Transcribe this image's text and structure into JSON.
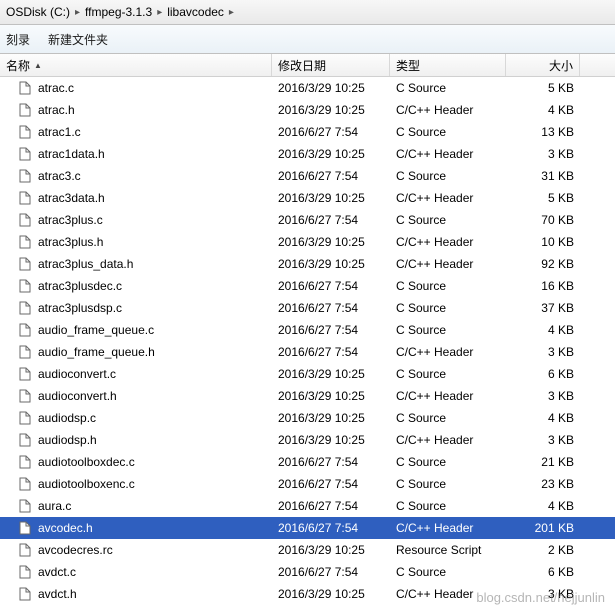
{
  "breadcrumb": {
    "root": "OSDisk (C:)",
    "parts": [
      "ffmpeg-3.1.3",
      "libavcodec"
    ]
  },
  "toolbar": {
    "burn": "刻录",
    "newfolder": "新建文件夹"
  },
  "columns": {
    "name": "名称",
    "date": "修改日期",
    "type": "类型",
    "size": "大小"
  },
  "types": {
    "csrc": "C Source",
    "hdr": "C/C++ Header",
    "rc": "Resource Script"
  },
  "watermark": "blog.csdn.net/hejjunlin",
  "files": [
    {
      "name": "atrac.c",
      "date": "2016/3/29 10:25",
      "type": "csrc",
      "size": "5 KB"
    },
    {
      "name": "atrac.h",
      "date": "2016/3/29 10:25",
      "type": "hdr",
      "size": "4 KB"
    },
    {
      "name": "atrac1.c",
      "date": "2016/6/27 7:54",
      "type": "csrc",
      "size": "13 KB"
    },
    {
      "name": "atrac1data.h",
      "date": "2016/3/29 10:25",
      "type": "hdr",
      "size": "3 KB"
    },
    {
      "name": "atrac3.c",
      "date": "2016/6/27 7:54",
      "type": "csrc",
      "size": "31 KB"
    },
    {
      "name": "atrac3data.h",
      "date": "2016/3/29 10:25",
      "type": "hdr",
      "size": "5 KB"
    },
    {
      "name": "atrac3plus.c",
      "date": "2016/6/27 7:54",
      "type": "csrc",
      "size": "70 KB"
    },
    {
      "name": "atrac3plus.h",
      "date": "2016/3/29 10:25",
      "type": "hdr",
      "size": "10 KB"
    },
    {
      "name": "atrac3plus_data.h",
      "date": "2016/3/29 10:25",
      "type": "hdr",
      "size": "92 KB"
    },
    {
      "name": "atrac3plusdec.c",
      "date": "2016/6/27 7:54",
      "type": "csrc",
      "size": "16 KB"
    },
    {
      "name": "atrac3plusdsp.c",
      "date": "2016/6/27 7:54",
      "type": "csrc",
      "size": "37 KB"
    },
    {
      "name": "audio_frame_queue.c",
      "date": "2016/6/27 7:54",
      "type": "csrc",
      "size": "4 KB"
    },
    {
      "name": "audio_frame_queue.h",
      "date": "2016/6/27 7:54",
      "type": "hdr",
      "size": "3 KB"
    },
    {
      "name": "audioconvert.c",
      "date": "2016/3/29 10:25",
      "type": "csrc",
      "size": "6 KB"
    },
    {
      "name": "audioconvert.h",
      "date": "2016/3/29 10:25",
      "type": "hdr",
      "size": "3 KB"
    },
    {
      "name": "audiodsp.c",
      "date": "2016/3/29 10:25",
      "type": "csrc",
      "size": "4 KB"
    },
    {
      "name": "audiodsp.h",
      "date": "2016/3/29 10:25",
      "type": "hdr",
      "size": "3 KB"
    },
    {
      "name": "audiotoolboxdec.c",
      "date": "2016/6/27 7:54",
      "type": "csrc",
      "size": "21 KB"
    },
    {
      "name": "audiotoolboxenc.c",
      "date": "2016/6/27 7:54",
      "type": "csrc",
      "size": "23 KB"
    },
    {
      "name": "aura.c",
      "date": "2016/6/27 7:54",
      "type": "csrc",
      "size": "4 KB"
    },
    {
      "name": "avcodec.h",
      "date": "2016/6/27 7:54",
      "type": "hdr",
      "size": "201 KB",
      "selected": true
    },
    {
      "name": "avcodecres.rc",
      "date": "2016/3/29 10:25",
      "type": "rc",
      "size": "2 KB"
    },
    {
      "name": "avdct.c",
      "date": "2016/6/27 7:54",
      "type": "csrc",
      "size": "6 KB"
    },
    {
      "name": "avdct.h",
      "date": "2016/3/29 10:25",
      "type": "hdr",
      "size": "3 KB"
    }
  ]
}
